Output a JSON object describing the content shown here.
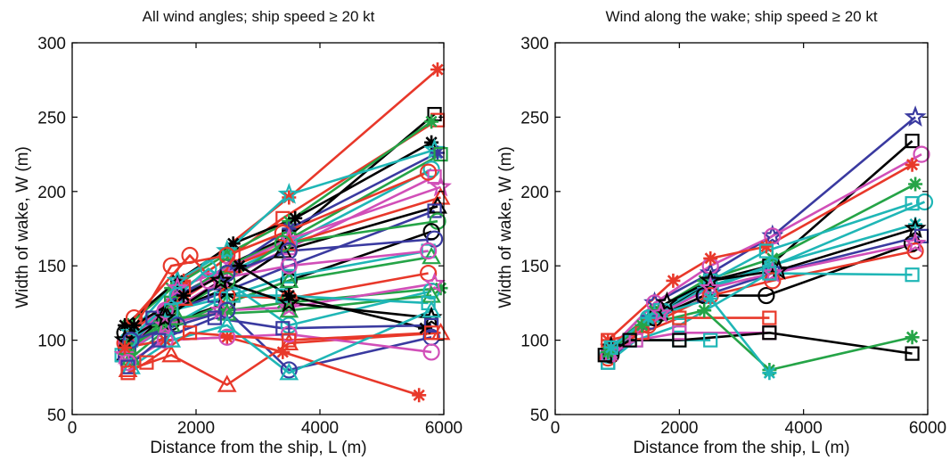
{
  "chart_data": [
    {
      "type": "line",
      "title": "All wind angles; ship speed ≥ 20 kt",
      "xlabel": "Distance from the ship, L (m)",
      "ylabel": "Width of wake, W (m)",
      "xlim": [
        0,
        6000
      ],
      "ylim": [
        50,
        300
      ],
      "xticks": [
        0,
        2000,
        4000,
        6000
      ],
      "yticks": [
        50,
        100,
        150,
        200,
        250,
        300
      ],
      "grid": false,
      "series": [
        {
          "color": "#e8382a",
          "marker": "asterisk",
          "x": [
            900,
            1800,
            3500,
            5900
          ],
          "y": [
            92,
            140,
            196,
            282
          ]
        },
        {
          "color": "#000000",
          "marker": "square",
          "x": [
            850,
            1600,
            2500,
            3500,
            5850
          ],
          "y": [
            95,
            125,
            150,
            170,
            252
          ]
        },
        {
          "color": "#e8382a",
          "marker": "square",
          "x": [
            950,
            1800,
            2600,
            3400,
            5900
          ],
          "y": [
            105,
            135,
            158,
            182,
            248
          ]
        },
        {
          "color": "#25a447",
          "marker": "asterisk",
          "x": [
            900,
            1600,
            2500,
            3500,
            5800
          ],
          "y": [
            110,
            135,
            158,
            180,
            247
          ]
        },
        {
          "color": "#000000",
          "marker": "asterisk",
          "x": [
            850,
            1700,
            2600,
            3600,
            5800
          ],
          "y": [
            110,
            140,
            165,
            182,
            233
          ]
        },
        {
          "color": "#1fb6b6",
          "marker": "star",
          "x": [
            950,
            1700,
            2500,
            3500,
            5850
          ],
          "y": [
            105,
            140,
            160,
            198,
            228
          ]
        },
        {
          "color": "#3a3aa0",
          "marker": "asterisk",
          "x": [
            900,
            1700,
            2600,
            3500,
            5900
          ],
          "y": [
            100,
            130,
            150,
            175,
            226
          ]
        },
        {
          "color": "#25a447",
          "marker": "square",
          "x": [
            850,
            1600,
            2500,
            3500,
            5950
          ],
          "y": [
            95,
            125,
            150,
            168,
            225
          ]
        },
        {
          "color": "#1fb6b6",
          "marker": "circle",
          "x": [
            900,
            1700,
            2500,
            3500,
            5800
          ],
          "y": [
            100,
            130,
            145,
            165,
            215
          ]
        },
        {
          "color": "#d14fb8",
          "marker": "square",
          "x": [
            850,
            1600,
            2400,
            3500,
            5850
          ],
          "y": [
            95,
            120,
            140,
            162,
            210
          ]
        },
        {
          "color": "#e8382a",
          "marker": "circle",
          "x": [
            850,
            1600,
            2500,
            3400,
            5750
          ],
          "y": [
            98,
            150,
            157,
            172,
            213
          ]
        },
        {
          "color": "#d14fb8",
          "marker": "star",
          "x": [
            900,
            1700,
            2600,
            3500,
            5950
          ],
          "y": [
            98,
            135,
            150,
            168,
            203
          ]
        },
        {
          "color": "#e8382a",
          "marker": "triangle",
          "x": [
            900,
            1800,
            2600,
            3500,
            5950
          ],
          "y": [
            100,
            128,
            150,
            165,
            196
          ]
        },
        {
          "color": "#000000",
          "marker": "triangle",
          "x": [
            850,
            1500,
            2500,
            3400,
            5900
          ],
          "y": [
            90,
            118,
            135,
            160,
            190
          ]
        },
        {
          "color": "#3a3aa0",
          "marker": "square",
          "x": [
            850,
            1300,
            2300,
            3500,
            5850
          ],
          "y": [
            90,
            115,
            130,
            150,
            187
          ]
        },
        {
          "color": "#25a447",
          "marker": "circle",
          "x": [
            900,
            1600,
            2500,
            3400,
            5900
          ],
          "y": [
            92,
            118,
            140,
            165,
            180
          ]
        },
        {
          "color": "#000000",
          "marker": "circle",
          "x": [
            850,
            1600,
            2500,
            3500,
            5800
          ],
          "y": [
            105,
            112,
            125,
            140,
            173
          ]
        },
        {
          "color": "#3a3aa0",
          "marker": "circle",
          "x": [
            900,
            1700,
            2500,
            3500,
            5850
          ],
          "y": [
            95,
            130,
            145,
            160,
            168
          ]
        },
        {
          "color": "#1fb6b6",
          "marker": "square",
          "x": [
            800,
            1500,
            2400,
            3500,
            5750
          ],
          "y": [
            90,
            108,
            128,
            143,
            160
          ]
        },
        {
          "color": "#25a447",
          "marker": "triangle",
          "x": [
            950,
            1600,
            2500,
            3500,
            5800
          ],
          "y": [
            88,
            110,
            125,
            140,
            156
          ]
        },
        {
          "color": "#d14fb8",
          "marker": "circle",
          "x": [
            900,
            1500,
            2200,
            3500,
            5750
          ],
          "y": [
            100,
            120,
            140,
            150,
            160
          ]
        },
        {
          "color": "#e8382a",
          "marker": "circle",
          "x": [
            1000,
            1900,
            2500,
            3500,
            5750
          ],
          "y": [
            115,
            157,
            130,
            128,
            145
          ]
        },
        {
          "color": "#1fb6b6",
          "marker": "circle",
          "x": [
            900,
            1700,
            2200,
            3500,
            5800
          ],
          "y": [
            100,
            130,
            148,
            110,
            133
          ]
        },
        {
          "color": "#25a447",
          "marker": "asterisk",
          "x": [
            900,
            1400,
            2500,
            3400,
            5950
          ],
          "y": [
            95,
            110,
            120,
            125,
            135
          ]
        },
        {
          "color": "#d14fb8",
          "marker": "star",
          "x": [
            850,
            1500,
            2400,
            3500,
            5850
          ],
          "y": [
            90,
            110,
            120,
            122,
            138
          ]
        },
        {
          "color": "#25a447",
          "marker": "triangle",
          "x": [
            900,
            1700,
            2500,
            3500,
            5800
          ],
          "y": [
            95,
            115,
            118,
            120,
            130
          ]
        },
        {
          "color": "#1fb6b6",
          "marker": "square",
          "x": [
            950,
            1600,
            2600,
            3400,
            5750
          ],
          "y": [
            100,
            120,
            130,
            130,
            125
          ]
        },
        {
          "color": "#000000",
          "marker": "star",
          "x": [
            850,
            1500,
            2400,
            3500,
            5800
          ],
          "y": [
            100,
            115,
            140,
            125,
            115
          ]
        },
        {
          "color": "#000000",
          "marker": "asterisk",
          "x": [
            1000,
            1800,
            2700,
            3500,
            5700
          ],
          "y": [
            110,
            130,
            150,
            130,
            108
          ]
        },
        {
          "color": "#3a3aa0",
          "marker": "circle",
          "x": [
            950,
            1700,
            2500,
            3500,
            5800
          ],
          "y": [
            100,
            110,
            120,
            80,
            102
          ]
        },
        {
          "color": "#e8382a",
          "marker": "triangle",
          "x": [
            900,
            1600,
            2500,
            3500,
            5950
          ],
          "y": [
            80,
            90,
            70,
            98,
            105
          ]
        },
        {
          "color": "#e8382a",
          "marker": "asterisk",
          "x": [
            850,
            1500,
            2500,
            3400,
            5600
          ],
          "y": [
            95,
            100,
            102,
            92,
            63
          ]
        },
        {
          "color": "#d14fb8",
          "marker": "circle",
          "x": [
            900,
            1500,
            2500,
            3500,
            5800
          ],
          "y": [
            85,
            100,
            102,
            104,
            92
          ]
        },
        {
          "color": "#1fb6b6",
          "marker": "triangle",
          "x": [
            950,
            1600,
            2500,
            3500,
            5800
          ],
          "y": [
            82,
            100,
            110,
            78,
            120
          ]
        },
        {
          "color": "#3a3aa0",
          "marker": "square",
          "x": [
            900,
            1400,
            2300,
            3400,
            5800
          ],
          "y": [
            82,
            100,
            115,
            108,
            110
          ]
        },
        {
          "color": "#e8382a",
          "marker": "square",
          "x": [
            900,
            1200,
            1900,
            3500,
            5800
          ],
          "y": [
            78,
            85,
            105,
            100,
            105
          ]
        }
      ]
    },
    {
      "type": "line",
      "title": "Wind along the wake; ship speed ≥ 20 kt",
      "xlabel": "Distance from the ship, L (m)",
      "ylabel": "Width of wake, W (m)",
      "xlim": [
        0,
        6000
      ],
      "ylim": [
        50,
        300
      ],
      "xticks": [
        0,
        2000,
        4000,
        6000
      ],
      "yticks": [
        50,
        100,
        150,
        200,
        250,
        300
      ],
      "grid": false,
      "series": [
        {
          "color": "#3a3aa0",
          "marker": "star",
          "x": [
            900,
            1600,
            2500,
            3500,
            5800
          ],
          "y": [
            95,
            125,
            145,
            170,
            250
          ]
        },
        {
          "color": "#000000",
          "marker": "square",
          "x": [
            850,
            1700,
            2500,
            3450,
            5750
          ],
          "y": [
            90,
            118,
            140,
            150,
            234
          ]
        },
        {
          "color": "#d14fb8",
          "marker": "circle",
          "x": [
            900,
            1600,
            2500,
            3500,
            5900
          ],
          "y": [
            95,
            125,
            150,
            170,
            225
          ]
        },
        {
          "color": "#e8382a",
          "marker": "asterisk",
          "x": [
            850,
            1900,
            2500,
            3400,
            5750
          ],
          "y": [
            100,
            140,
            155,
            163,
            218
          ]
        },
        {
          "color": "#25a447",
          "marker": "asterisk",
          "x": [
            900,
            1600,
            2400,
            3500,
            5800
          ],
          "y": [
            95,
            120,
            140,
            155,
            205
          ]
        },
        {
          "color": "#1fb6b6",
          "marker": "circle",
          "x": [
            850,
            1500,
            2500,
            3500,
            5950
          ],
          "y": [
            90,
            115,
            135,
            150,
            193
          ]
        },
        {
          "color": "#1fb6b6",
          "marker": "square",
          "x": [
            900,
            1700,
            2500,
            3400,
            5750
          ],
          "y": [
            95,
            120,
            140,
            160,
            192
          ]
        },
        {
          "color": "#1fb6b6",
          "marker": "asterisk",
          "x": [
            850,
            1600,
            2400,
            3450,
            5800
          ],
          "y": [
            90,
            115,
            135,
            150,
            178
          ]
        },
        {
          "color": "#000000",
          "marker": "star",
          "x": [
            900,
            1800,
            2500,
            3600,
            5800
          ],
          "y": [
            95,
            125,
            140,
            147,
            175
          ]
        },
        {
          "color": "#3a3aa0",
          "marker": "square",
          "x": [
            850,
            1500,
            2400,
            3500,
            5900
          ],
          "y": [
            85,
            112,
            130,
            145,
            170
          ]
        },
        {
          "color": "#000000",
          "marker": "circle",
          "x": [
            900,
            1600,
            2400,
            3400,
            5750
          ],
          "y": [
            90,
            115,
            130,
            130,
            165
          ]
        },
        {
          "color": "#e8382a",
          "marker": "circle",
          "x": [
            850,
            1500,
            2500,
            3500,
            5800
          ],
          "y": [
            88,
            110,
            130,
            140,
            160
          ]
        },
        {
          "color": "#d14fb8",
          "marker": "star",
          "x": [
            900,
            1700,
            2500,
            3500,
            5800
          ],
          "y": [
            92,
            118,
            135,
            145,
            165
          ]
        },
        {
          "color": "#1fb6b6",
          "marker": "square",
          "x": [
            850,
            1300,
            2000,
            3450,
            5750
          ],
          "y": [
            85,
            100,
            110,
            145,
            144
          ]
        },
        {
          "color": "#e8382a",
          "marker": "square",
          "x": [
            850,
            1400,
            2000,
            3450
          ],
          "y": [
            100,
            105,
            115,
            115
          ]
        },
        {
          "color": "#d14fb8",
          "marker": "square",
          "x": [
            850,
            1300,
            2000,
            3450
          ],
          "y": [
            90,
            100,
            105,
            105
          ]
        },
        {
          "color": "#1fb6b6",
          "marker": "square",
          "x": [
            900,
            1200,
            2000,
            2500
          ],
          "y": [
            95,
            100,
            100,
            100
          ]
        },
        {
          "color": "#000000",
          "marker": "square",
          "x": [
            800,
            1200,
            2000,
            3450,
            5750
          ],
          "y": [
            90,
            100,
            100,
            105,
            91
          ]
        },
        {
          "color": "#25a447",
          "marker": "asterisk",
          "x": [
            850,
            1400,
            2400,
            3450,
            5750
          ],
          "y": [
            92,
            110,
            120,
            80,
            102
          ]
        },
        {
          "color": "#1fb6b6",
          "marker": "asterisk",
          "x": [
            900,
            1500,
            2500,
            3450
          ],
          "y": [
            95,
            115,
            128,
            78
          ]
        }
      ]
    }
  ]
}
